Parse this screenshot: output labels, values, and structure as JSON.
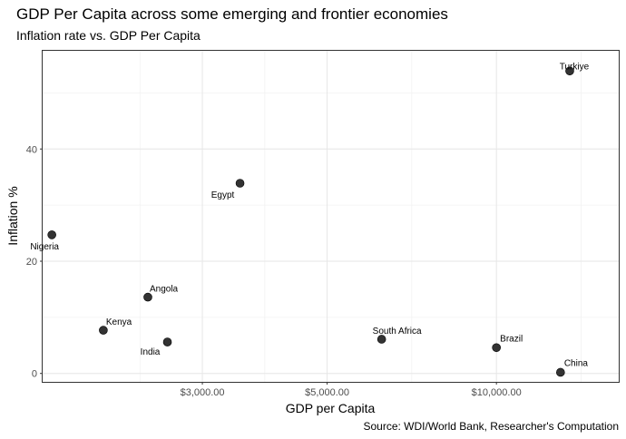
{
  "chart_data": {
    "type": "scatter",
    "title": "GDP Per Capita across some emerging and frontier economies",
    "subtitle": "Inflation rate vs. GDP Per Capita",
    "caption": "Source: WDI/World Bank, Researcher's Computation",
    "xlabel": "GDP per Capita",
    "ylabel": "Inflation %",
    "x_scale": "log",
    "xlim": [
      1560,
      16500
    ],
    "ylim": [
      -1.5,
      57.5
    ],
    "x_ticks": [
      3000,
      5000,
      10000
    ],
    "x_tick_labels": [
      "$3,000.00",
      "$5,000.00",
      "$10,000.00"
    ],
    "y_ticks": [
      0,
      20,
      40
    ],
    "y_tick_labels": [
      "0",
      "20",
      "40"
    ],
    "grid": true,
    "point_color": "#333333",
    "points": [
      {
        "label": "Nigeria",
        "x": 1620,
        "y": 24.7
      },
      {
        "label": "Kenya",
        "x": 2000,
        "y": 7.7
      },
      {
        "label": "Angola",
        "x": 2400,
        "y": 13.6
      },
      {
        "label": "India",
        "x": 2600,
        "y": 5.6
      },
      {
        "label": "Egypt",
        "x": 3500,
        "y": 33.9
      },
      {
        "label": "South Africa",
        "x": 6250,
        "y": 6.1
      },
      {
        "label": "Brazil",
        "x": 10000,
        "y": 4.6
      },
      {
        "label": "China",
        "x": 13000,
        "y": 0.2
      },
      {
        "label": "Turkiye",
        "x": 13500,
        "y": 53.9
      }
    ]
  }
}
